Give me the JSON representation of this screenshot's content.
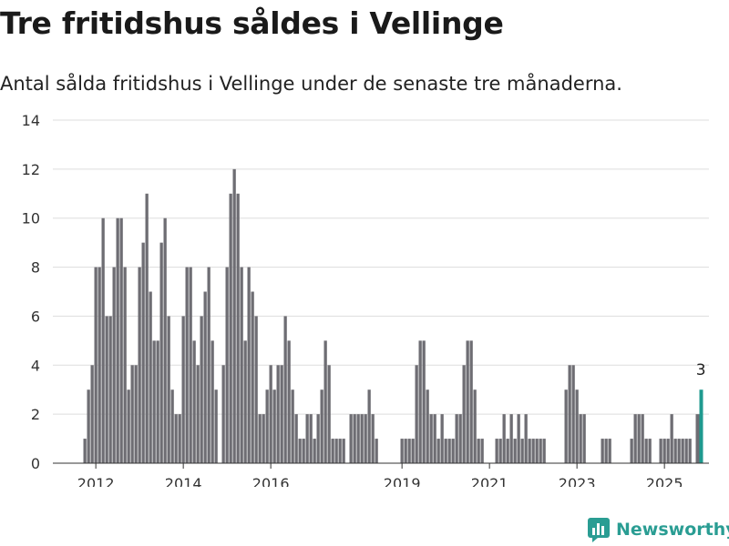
{
  "title": "Tre fritidshus såldes i Vellinge",
  "subtitle": "Antal sålda fritidshus i Vellinge under de senaste tre månaderna.",
  "brand": "Newsworthy",
  "colors": {
    "bar": "#6e6d73",
    "highlight": "#1f9a8f",
    "grid": "#dddddd",
    "brand": "#2a9d93"
  },
  "chart_data": {
    "type": "bar",
    "ylim": [
      0,
      14
    ],
    "yticks": [
      0,
      2,
      4,
      6,
      8,
      10,
      12,
      14
    ],
    "xticks": [
      "2012",
      "2014",
      "2016",
      "2019",
      "2021",
      "2023",
      "2025"
    ],
    "grid": true,
    "start_month": "2011-10",
    "values": [
      1,
      3,
      4,
      8,
      8,
      10,
      6,
      6,
      8,
      10,
      10,
      8,
      3,
      4,
      4,
      8,
      9,
      11,
      7,
      5,
      5,
      9,
      10,
      6,
      3,
      2,
      2,
      6,
      8,
      8,
      5,
      4,
      6,
      7,
      8,
      5,
      3,
      0,
      4,
      8,
      11,
      12,
      11,
      8,
      5,
      8,
      7,
      6,
      2,
      2,
      3,
      4,
      3,
      4,
      4,
      6,
      5,
      3,
      2,
      1,
      1,
      2,
      2,
      1,
      2,
      3,
      5,
      4,
      1,
      1,
      1,
      1,
      0,
      2,
      2,
      2,
      2,
      2,
      3,
      2,
      1,
      0,
      0,
      0,
      0,
      0,
      0,
      1,
      1,
      1,
      1,
      4,
      5,
      5,
      3,
      2,
      2,
      1,
      2,
      1,
      1,
      1,
      2,
      2,
      4,
      5,
      5,
      3,
      1,
      1,
      0,
      0,
      0,
      1,
      1,
      2,
      1,
      2,
      1,
      2,
      1,
      2,
      1,
      1,
      1,
      1,
      1,
      0,
      0,
      0,
      0,
      0,
      3,
      4,
      4,
      3,
      2,
      2,
      0,
      0,
      0,
      0,
      1,
      1,
      1,
      0,
      0,
      0,
      0,
      0,
      1,
      2,
      2,
      2,
      1,
      1,
      0,
      0,
      1,
      1,
      1,
      2,
      1,
      1,
      1,
      1,
      1,
      0,
      2,
      3
    ],
    "highlight_last_label": "3"
  }
}
